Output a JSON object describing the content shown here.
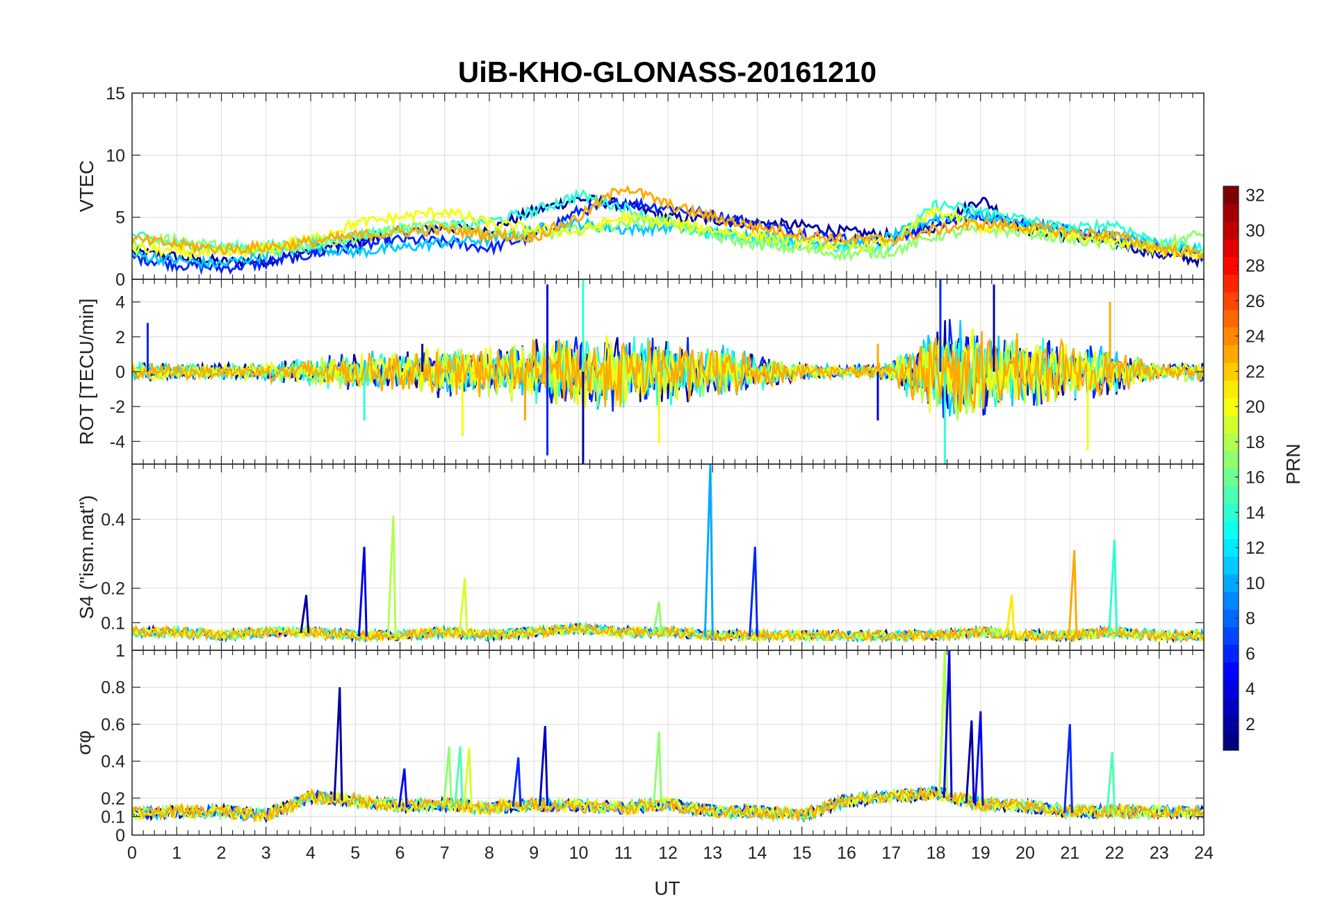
{
  "chart_data": {
    "type": "line",
    "title": "UiB-KHO-GLONASS-20161210",
    "xlabel": "UT",
    "xlim": [
      0,
      24
    ],
    "x_ticks": [
      0,
      1,
      2,
      3,
      4,
      5,
      6,
      7,
      8,
      9,
      10,
      11,
      12,
      13,
      14,
      15,
      16,
      17,
      18,
      19,
      20,
      21,
      22,
      23,
      24
    ],
    "colorbar": {
      "label": "PRN",
      "range": [
        1,
        32
      ],
      "ticks": [
        2,
        4,
        6,
        8,
        10,
        12,
        14,
        16,
        18,
        20,
        22,
        24,
        26,
        28,
        30,
        32
      ],
      "colormap": "jet"
    },
    "panels": [
      {
        "id": "vtec",
        "ylabel": "VTEC",
        "ylim": [
          0,
          15
        ],
        "y_ticks": [
          0,
          5,
          10,
          15
        ],
        "series": [
          {
            "name": "PRN 2",
            "prn": 2,
            "x": [
              0,
              1,
              2,
              3,
              4,
              5,
              6,
              7,
              8,
              9,
              10,
              11,
              12,
              13,
              14,
              15,
              16,
              17,
              18,
              19,
              20,
              21,
              22,
              23,
              24
            ],
            "y": [
              2.2,
              1.8,
              1.4,
              1.5,
              2.3,
              3.0,
              3.8,
              4.2,
              4.0,
              5.5,
              6.5,
              6.0,
              5.0,
              4.8,
              4.5,
              4.3,
              3.8,
              3.5,
              4.2,
              6.5,
              4.0,
              3.5,
              3.0,
              2.0,
              1.5
            ]
          },
          {
            "name": "PRN 6",
            "prn": 6,
            "x": [
              0,
              1,
              2,
              3,
              4,
              5,
              6,
              7,
              8,
              9,
              10,
              11,
              12,
              13,
              14,
              15,
              16,
              17,
              18,
              19,
              20,
              21,
              22,
              23,
              24
            ],
            "y": [
              1.8,
              1.2,
              0.9,
              1.3,
              2.0,
              2.6,
              3.2,
              3.0,
              2.5,
              3.5,
              5.5,
              6.2,
              5.8,
              5.2,
              4.5,
              3.8,
              3.2,
              3.0,
              4.5,
              5.0,
              4.6,
              3.8,
              3.2,
              2.5,
              2.0
            ]
          },
          {
            "name": "PRN 11",
            "prn": 11,
            "x": [
              0,
              1,
              2,
              3,
              4,
              5,
              6,
              7,
              8,
              9,
              10,
              11,
              12,
              13,
              14,
              15,
              16,
              17,
              18,
              19,
              20,
              21,
              22,
              23,
              24
            ],
            "y": [
              2.0,
              1.5,
              1.2,
              2.0,
              2.6,
              2.2,
              2.5,
              3.0,
              3.2,
              4.0,
              4.5,
              4.0,
              4.2,
              3.8,
              3.5,
              3.0,
              2.8,
              3.4,
              5.0,
              5.2,
              4.5,
              4.0,
              3.5,
              2.8,
              2.2
            ]
          },
          {
            "name": "PRN 14",
            "prn": 14,
            "x": [
              0,
              1,
              2,
              3,
              4,
              5,
              6,
              7,
              8,
              9,
              10,
              11,
              12,
              13,
              14,
              15,
              16,
              17,
              18,
              19,
              20,
              21,
              22,
              23,
              24
            ],
            "y": [
              3.5,
              2.8,
              2.5,
              2.6,
              3.0,
              3.5,
              4.0,
              4.2,
              4.6,
              5.5,
              6.8,
              5.8,
              4.4,
              3.6,
              3.2,
              3.0,
              2.5,
              2.8,
              6.0,
              5.5,
              4.8,
              4.0,
              4.5,
              2.8,
              2.4
            ]
          },
          {
            "name": "PRN 17",
            "prn": 17,
            "x": [
              0,
              1,
              2,
              3,
              4,
              5,
              6,
              7,
              8,
              9,
              10,
              11,
              12,
              13,
              14,
              15,
              16,
              17,
              18,
              19,
              20,
              21,
              22,
              23,
              24
            ],
            "y": [
              3.0,
              3.2,
              2.6,
              2.2,
              2.8,
              3.4,
              4.0,
              4.5,
              3.8,
              3.5,
              4.0,
              4.5,
              4.8,
              3.5,
              2.8,
              2.4,
              2.0,
              2.2,
              3.5,
              4.0,
              3.8,
              3.2,
              2.8,
              2.6,
              3.8
            ]
          },
          {
            "name": "PRN 20",
            "prn": 20,
            "x": [
              0,
              1,
              2,
              3,
              4,
              5,
              6,
              7,
              8,
              9,
              10,
              11,
              12,
              13,
              14,
              15,
              16,
              17,
              18,
              19,
              20,
              21,
              22,
              23,
              24
            ],
            "y": [
              2.5,
              2.2,
              2.0,
              2.5,
              3.2,
              4.5,
              5.0,
              5.5,
              4.5,
              4.0,
              3.8,
              5.0,
              4.5,
              4.0,
              3.5,
              3.0,
              2.6,
              3.0,
              5.5,
              4.2,
              4.0,
              3.6,
              3.2,
              2.4,
              2.0
            ]
          },
          {
            "name": "PRN 23",
            "prn": 23,
            "x": [
              0,
              1,
              2,
              3,
              4,
              5,
              6,
              7,
              8,
              9,
              10,
              11,
              12,
              13,
              14,
              15,
              16,
              17,
              18,
              19,
              20,
              21,
              22,
              23,
              24
            ],
            "y": [
              3.2,
              2.8,
              2.4,
              2.6,
              3.0,
              3.5,
              3.8,
              4.0,
              3.6,
              3.4,
              5.0,
              7.5,
              6.0,
              5.0,
              4.2,
              3.6,
              3.2,
              3.2,
              4.0,
              4.5,
              4.2,
              3.8,
              3.5,
              2.5,
              2.0
            ]
          }
        ]
      },
      {
        "id": "rot",
        "ylabel": "ROT [TECU/min]",
        "ylim": [
          -5.3,
          5.3
        ],
        "y_ticks": [
          -4,
          -2,
          0,
          2,
          4
        ],
        "envelope": {
          "x": [
            0,
            1,
            2,
            3,
            4,
            5,
            6,
            7,
            8,
            9,
            10,
            11,
            12,
            13,
            14,
            15,
            16,
            17,
            18,
            19,
            20,
            21,
            22,
            23,
            24
          ],
          "amplitude": [
            0.6,
            0.5,
            0.5,
            0.6,
            0.9,
            1.2,
            1.3,
            1.6,
            1.6,
            2.0,
            2.4,
            2.4,
            2.2,
            1.8,
            1.2,
            0.5,
            0.4,
            0.6,
            3.4,
            3.0,
            2.2,
            2.0,
            1.4,
            0.5,
            0.6
          ]
        },
        "spikes": [
          {
            "x": 0.35,
            "y": 2.8
          },
          {
            "x": 5.2,
            "y": -2.8
          },
          {
            "x": 6.5,
            "y": 1.6
          },
          {
            "x": 7.4,
            "y": -3.7
          },
          {
            "x": 8.8,
            "y": -2.8
          },
          {
            "x": 9.3,
            "y": 5.0
          },
          {
            "x": 9.3,
            "y": -4.8
          },
          {
            "x": 10.1,
            "y": 5.3
          },
          {
            "x": 10.1,
            "y": -5.3
          },
          {
            "x": 11.8,
            "y": -4.1
          },
          {
            "x": 16.7,
            "y": 1.6
          },
          {
            "x": 16.7,
            "y": -2.8
          },
          {
            "x": 18.1,
            "y": 5.3
          },
          {
            "x": 18.2,
            "y": -5.3
          },
          {
            "x": 19.3,
            "y": 5.0
          },
          {
            "x": 21.4,
            "y": -4.5
          },
          {
            "x": 21.9,
            "y": 4.0
          }
        ]
      },
      {
        "id": "s4",
        "ylabel": "S4 (\"ism.mat\")",
        "ylim": [
          0.02,
          0.56
        ],
        "y_ticks": [
          0.1,
          0.2,
          0.4
        ],
        "baseline": {
          "x": [
            0,
            1,
            2,
            3,
            4,
            5,
            6,
            7,
            8,
            9,
            10,
            11,
            12,
            13,
            14,
            15,
            16,
            17,
            18,
            19,
            20,
            21,
            22,
            23,
            24
          ],
          "y": [
            0.07,
            0.07,
            0.06,
            0.07,
            0.07,
            0.06,
            0.06,
            0.07,
            0.06,
            0.07,
            0.08,
            0.07,
            0.07,
            0.06,
            0.06,
            0.06,
            0.06,
            0.06,
            0.06,
            0.07,
            0.06,
            0.06,
            0.07,
            0.06,
            0.06
          ]
        },
        "spikes": [
          {
            "x": 3.9,
            "y": 0.18,
            "prn": 2
          },
          {
            "x": 5.2,
            "y": 0.32,
            "prn": 4
          },
          {
            "x": 5.85,
            "y": 0.41,
            "prn": 18
          },
          {
            "x": 7.45,
            "y": 0.23,
            "prn": 19
          },
          {
            "x": 11.8,
            "y": 0.16,
            "prn": 17
          },
          {
            "x": 12.95,
            "y": 0.56,
            "prn": 10
          },
          {
            "x": 13.95,
            "y": 0.32,
            "prn": 6
          },
          {
            "x": 19.7,
            "y": 0.18,
            "prn": 21
          },
          {
            "x": 21.1,
            "y": 0.31,
            "prn": 23
          },
          {
            "x": 22.0,
            "y": 0.34,
            "prn": 14
          }
        ]
      },
      {
        "id": "sigma_phi",
        "ylabel": "σφ",
        "ylim": [
          0,
          1
        ],
        "y_ticks": [
          0,
          0.1,
          0.2,
          0.4,
          0.6,
          0.8,
          1
        ],
        "baseline": {
          "x": [
            0,
            1,
            2,
            3,
            4,
            5,
            6,
            7,
            8,
            9,
            10,
            11,
            12,
            13,
            14,
            15,
            16,
            17,
            18,
            19,
            20,
            21,
            22,
            23,
            24
          ],
          "y": [
            0.11,
            0.12,
            0.12,
            0.1,
            0.2,
            0.18,
            0.15,
            0.16,
            0.14,
            0.16,
            0.15,
            0.14,
            0.16,
            0.12,
            0.12,
            0.1,
            0.18,
            0.2,
            0.22,
            0.16,
            0.15,
            0.12,
            0.12,
            0.12,
            0.12
          ]
        },
        "spikes": [
          {
            "x": 4.65,
            "y": 0.8,
            "prn": 2
          },
          {
            "x": 6.1,
            "y": 0.36,
            "prn": 5
          },
          {
            "x": 7.1,
            "y": 0.48,
            "prn": 17
          },
          {
            "x": 7.35,
            "y": 0.48,
            "prn": 15
          },
          {
            "x": 7.55,
            "y": 0.47,
            "prn": 19
          },
          {
            "x": 9.25,
            "y": 0.59,
            "prn": 3
          },
          {
            "x": 8.65,
            "y": 0.42,
            "prn": 6
          },
          {
            "x": 11.8,
            "y": 0.56,
            "prn": 17
          },
          {
            "x": 18.2,
            "y": 1.0,
            "prn": 18
          },
          {
            "x": 18.3,
            "y": 1.0,
            "prn": 4
          },
          {
            "x": 18.8,
            "y": 0.62,
            "prn": 2
          },
          {
            "x": 19.0,
            "y": 0.67,
            "prn": 5
          },
          {
            "x": 21.0,
            "y": 0.6,
            "prn": 6
          },
          {
            "x": 21.95,
            "y": 0.45,
            "prn": 15
          }
        ]
      }
    ]
  }
}
